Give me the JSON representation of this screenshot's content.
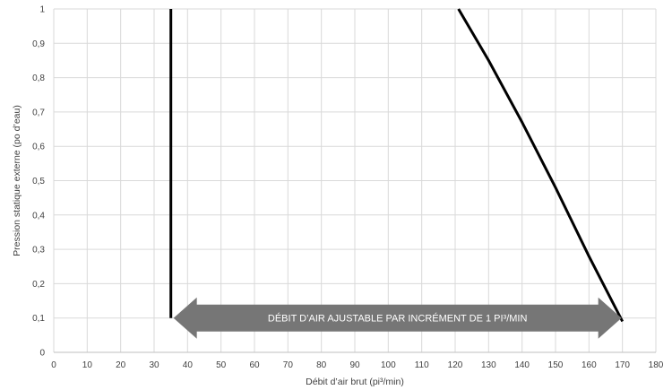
{
  "chart_data": {
    "type": "line",
    "title": "",
    "xlabel": "Débit d’air brut (pi³/min)",
    "ylabel": "Pression statique externe (po d’eau)",
    "xlim": [
      0,
      180
    ],
    "ylim": [
      0,
      1
    ],
    "x_ticks": [
      0,
      10,
      20,
      30,
      40,
      50,
      60,
      70,
      80,
      90,
      100,
      110,
      120,
      130,
      140,
      150,
      160,
      170,
      180
    ],
    "y_ticks": [
      0,
      0.1,
      0.2,
      0.3,
      0.4,
      0.5,
      0.6,
      0.7,
      0.8,
      0.9,
      1
    ],
    "y_tick_labels": [
      "0",
      "0,1",
      "0,2",
      "0,3",
      "0,4",
      "0,5",
      "0,6",
      "0,7",
      "0,8",
      "0,9",
      "1"
    ],
    "grid": true,
    "series": [
      {
        "points": [
          [
            35,
            0.1
          ],
          [
            35,
            1
          ]
        ]
      },
      {
        "points": [
          [
            121,
            1
          ],
          [
            130,
            0.85
          ],
          [
            140,
            0.67
          ],
          [
            150,
            0.48
          ],
          [
            160,
            0.28
          ],
          [
            170,
            0.09
          ]
        ]
      }
    ],
    "annotations": [
      {
        "text": "DÉBIT D’AIR AJUSTABLE PAR INCRÉMENT DE 1 PI³/MIN",
        "x_start": 35,
        "x_end": 170,
        "y": 0.1,
        "shape": "double-arrow",
        "color": "#767676"
      }
    ],
    "colors": {
      "line": "#000000",
      "grid": "#d9d9d9",
      "arrow": "#767676",
      "text": "#404040"
    }
  }
}
